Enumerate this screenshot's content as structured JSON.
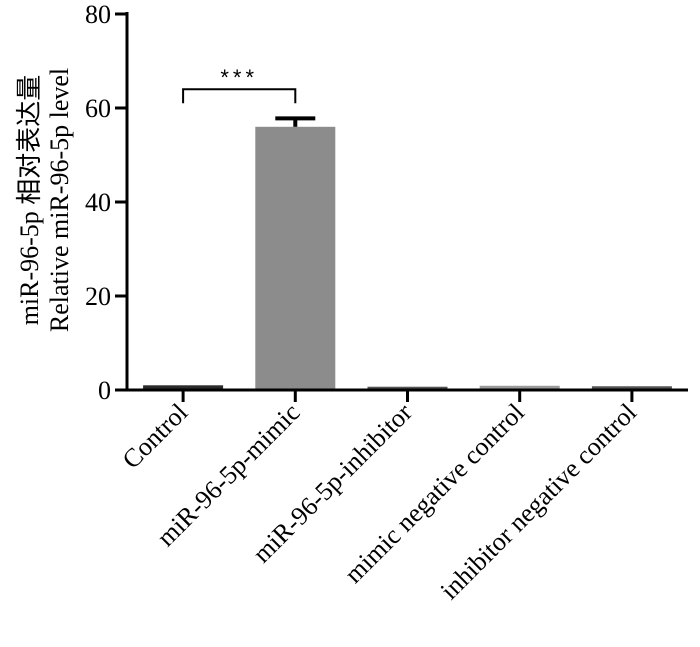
{
  "chart_data": {
    "type": "bar",
    "title": "",
    "ylabel_lines": [
      "miR-96-5p 相对表达量",
      "Relative miR-96-5p level"
    ],
    "xlabel": "",
    "ylim": [
      0,
      80
    ],
    "yticks": [
      0,
      20,
      40,
      60,
      80
    ],
    "categories": [
      "Control",
      "miR-96-5p-mimic",
      "miR-96-5p-inhibitor",
      "mimic negative control",
      "inhibitor negative control"
    ],
    "values": [
      1.0,
      56.0,
      0.7,
      0.9,
      0.8
    ],
    "errors": [
      0.2,
      1.8,
      0.1,
      0.1,
      0.1
    ],
    "bar_colors": [
      "#2b2b2b",
      "#8c8c8c",
      "#555555",
      "#9a9a9a",
      "#555555"
    ],
    "significance": {
      "from": 0,
      "to": 1,
      "label": "***",
      "y": 64
    },
    "grid": false,
    "legend": "none"
  }
}
